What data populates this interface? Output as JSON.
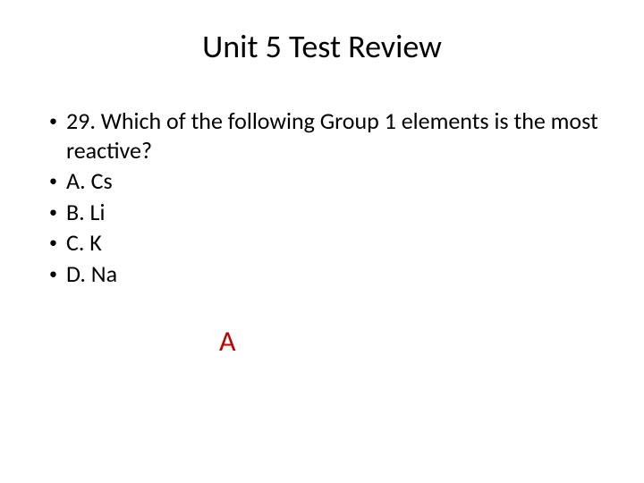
{
  "slide": {
    "title": "Unit 5 Test Review",
    "title_fontsize": 36,
    "title_color": "#000000",
    "background_color": "#ffffff",
    "bullets": [
      {
        "text": "29. Which of the following Group 1 elements is the most reactive?"
      },
      {
        "text": "A. Cs"
      },
      {
        "text": "B. Li"
      },
      {
        "text": "C. K"
      },
      {
        "text": "D. Na"
      }
    ],
    "bullet_fontsize": 26,
    "bullet_color": "#000000",
    "bullet_marker": "•",
    "answer": {
      "text": "A",
      "color": "#c00000",
      "fontsize": 32
    }
  }
}
